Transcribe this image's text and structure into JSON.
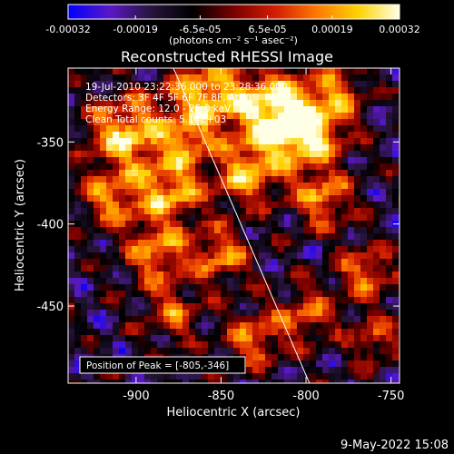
{
  "chart_data": {
    "type": "heatmap",
    "title": "Reconstructed RHESSI Image",
    "xlabel": "Heliocentric X (arcsec)",
    "ylabel": "Heliocentric Y (arcsec)",
    "xlim": [
      -940,
      -745
    ],
    "ylim": [
      -497,
      -305
    ],
    "x_ticks": [
      "-900",
      "-850",
      "-800",
      "-750"
    ],
    "x_tick_values": [
      -900,
      -850,
      -800,
      -750
    ],
    "y_ticks": [
      "-350",
      "-400",
      "-450"
    ],
    "y_tick_values": [
      -350,
      -400,
      -450
    ],
    "colorbar": {
      "units": "(photons cm⁻² s⁻¹ asec⁻²)",
      "ticks": [
        "-0.00032",
        "-0.00019",
        "-6.5e-05",
        "6.5e-05",
        "0.00019",
        "0.00032"
      ],
      "tick_values": [
        -0.00032,
        -0.00019,
        -6.5e-05,
        6.5e-05,
        0.00019,
        0.00032
      ],
      "range": [
        -0.00032,
        0.00032
      ],
      "colormap": [
        "#0000ff",
        "#5a18c8",
        "#28143c",
        "#000000",
        "#7a0000",
        "#d21e00",
        "#ff7800",
        "#ffd200",
        "#ffffe6"
      ]
    },
    "info_lines": [
      "19-Jul-2010 23:22:36.000 to 23:28:36.000",
      "Detectors: 3F 4F 5F 6F 7F 8F, Att 0",
      "Energy Range: 12.0 - 25.0 keV",
      "Clean     Total counts: 5.14E+03"
    ],
    "peak_label": "Position of Peak = [-805,-346]",
    "limb_line": {
      "x": [
        -878,
        -798
      ],
      "y": [
        -305,
        -497
      ]
    },
    "bright_regions": [
      {
        "x": -905,
        "y": -345,
        "amp": 0.95,
        "r": 16
      },
      {
        "x": -880,
        "y": -380,
        "amp": 0.85,
        "r": 14
      },
      {
        "x": -915,
        "y": -385,
        "amp": 0.7,
        "r": 12
      },
      {
        "x": -860,
        "y": -322,
        "amp": 0.9,
        "r": 15
      },
      {
        "x": -820,
        "y": -330,
        "amp": 1.0,
        "r": 18
      },
      {
        "x": -800,
        "y": -345,
        "amp": 1.0,
        "r": 15
      },
      {
        "x": -835,
        "y": -370,
        "amp": 0.8,
        "r": 13
      },
      {
        "x": -790,
        "y": -385,
        "amp": 0.75,
        "r": 12
      },
      {
        "x": -850,
        "y": -420,
        "amp": 0.7,
        "r": 12
      },
      {
        "x": -888,
        "y": -418,
        "amp": 0.75,
        "r": 13
      },
      {
        "x": -878,
        "y": -455,
        "amp": 0.55,
        "r": 12
      },
      {
        "x": -830,
        "y": -470,
        "amp": 0.65,
        "r": 12
      },
      {
        "x": -800,
        "y": -455,
        "amp": 0.6,
        "r": 12
      },
      {
        "x": -765,
        "y": -430,
        "amp": 0.65,
        "r": 12
      },
      {
        "x": -760,
        "y": -470,
        "amp": 0.55,
        "r": 10
      },
      {
        "x": -870,
        "y": -350,
        "amp": 0.6,
        "r": 10
      },
      {
        "x": -780,
        "y": -320,
        "amp": 0.55,
        "r": 11
      }
    ]
  },
  "footer": {
    "date": "9-May-2022 15:08"
  }
}
